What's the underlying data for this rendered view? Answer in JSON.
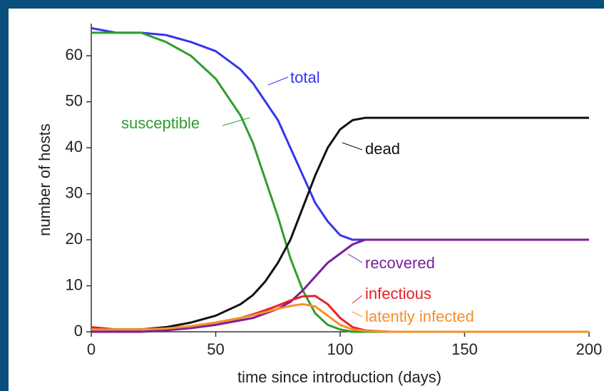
{
  "chart_data": {
    "type": "line",
    "x_label": "time since introduction (days)",
    "y_label": "number of hosts",
    "x": [
      0,
      10,
      20,
      30,
      40,
      50,
      60,
      65,
      70,
      75,
      80,
      85,
      90,
      95,
      100,
      105,
      110,
      120,
      140,
      160,
      180,
      200
    ],
    "series": [
      {
        "name": "total",
        "color": "#3535f0",
        "values": [
          66,
          65,
          65,
          64.5,
          63,
          61,
          57,
          54,
          50,
          46,
          40,
          34,
          28,
          24,
          21,
          20,
          20,
          20,
          20,
          20,
          20,
          20
        ]
      },
      {
        "name": "susceptible",
        "color": "#2e9e2e",
        "values": [
          65,
          65,
          65,
          63,
          60,
          55,
          47,
          41,
          33,
          25,
          16,
          9,
          4,
          1.5,
          0.5,
          0,
          0,
          0,
          0,
          0,
          0,
          0
        ]
      },
      {
        "name": "dead",
        "color": "#111111",
        "values": [
          0.5,
          0.5,
          0.5,
          1,
          2,
          3.5,
          6,
          8,
          11,
          15,
          20,
          27,
          34,
          40,
          44,
          46,
          46.5,
          46.5,
          46.5,
          46.5,
          46.5,
          46.5
        ]
      },
      {
        "name": "recovered",
        "color": "#7a1f9a",
        "values": [
          0,
          0,
          0,
          0.3,
          0.8,
          1.5,
          2.5,
          3,
          4,
          5,
          6.5,
          9,
          12,
          15,
          17,
          19,
          20,
          20,
          20,
          20,
          20,
          20
        ]
      },
      {
        "name": "infectious",
        "color": "#e8202a",
        "values": [
          1,
          0.5,
          0.5,
          0.7,
          1.2,
          2,
          3,
          3.8,
          4.7,
          5.7,
          6.8,
          7.7,
          7.8,
          6,
          3,
          1,
          0.3,
          0,
          0,
          0,
          0,
          0
        ]
      },
      {
        "name": "latently infected",
        "color": "#f5902a",
        "values": [
          0.5,
          0.5,
          0.5,
          0.7,
          1.2,
          2,
          3,
          3.6,
          4.3,
          5,
          5.6,
          6,
          5.5,
          3.5,
          1.5,
          0.5,
          0.2,
          0,
          0,
          0,
          0,
          0
        ]
      }
    ],
    "xlim": [
      0,
      200
    ],
    "xticks": [
      0,
      50,
      100,
      150,
      200
    ],
    "ylim": [
      0,
      67
    ],
    "yticks": [
      0,
      10,
      20,
      30,
      40,
      50,
      60
    ]
  }
}
